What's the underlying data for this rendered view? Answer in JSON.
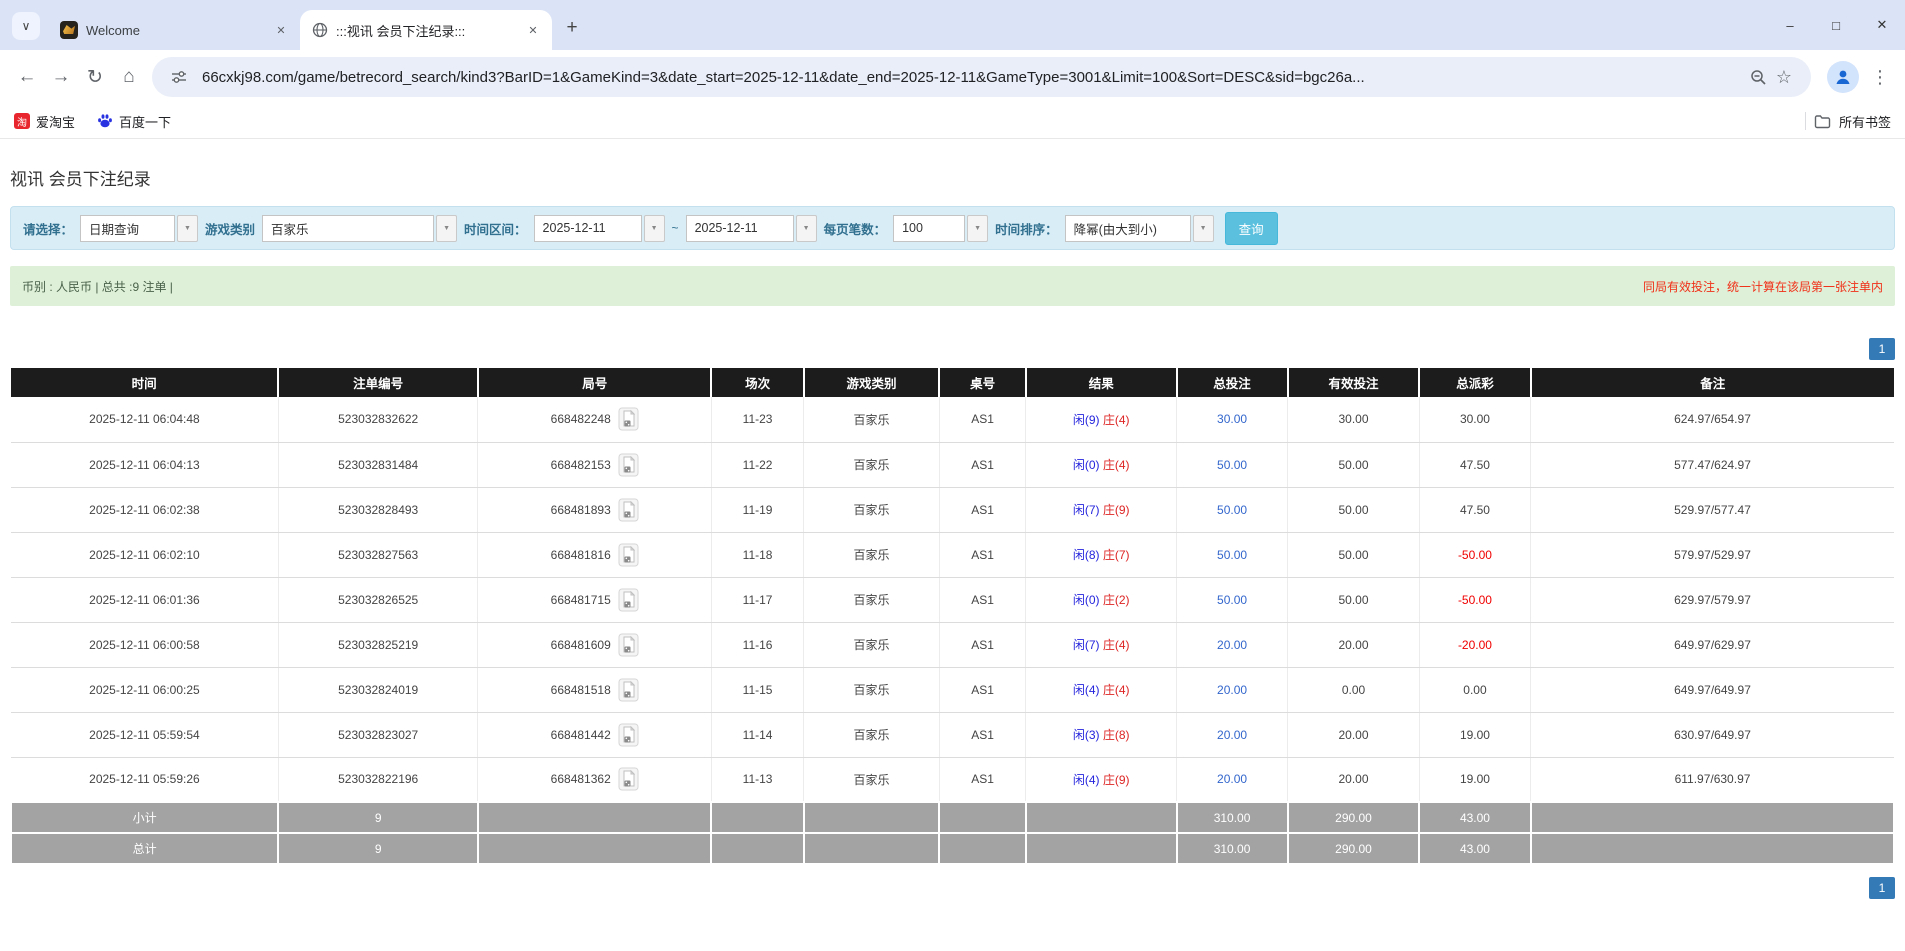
{
  "browser": {
    "tabs": [
      {
        "title": "Welcome"
      },
      {
        "title": ":::视讯 会员下注纪录:::"
      }
    ],
    "url": "66cxkj98.com/game/betrecord_search/kind3?BarID=1&GameKind=3&date_start=2025-12-11&date_end=2025-12-11&GameType=3001&Limit=100&Sort=DESC&sid=bgc26a...",
    "bookmarks": [
      "爱淘宝",
      "百度一下"
    ],
    "all_bookmarks_label": "所有书签"
  },
  "icons": {
    "tab_chevron": "∨",
    "tab_close": "✕",
    "new_tab": "+",
    "win_minimize": "–",
    "win_maximize": "□",
    "win_close": "✕",
    "nav_back": "←",
    "nav_forward": "→",
    "nav_refresh": "↻",
    "nav_home": "⌂",
    "star": "☆",
    "menu_dots": "⋮",
    "combo_arrow": "▼",
    "taobao_glyph": "淘"
  },
  "page": {
    "title": "视讯 会员下注纪录",
    "filters": {
      "select_label": "请选择：",
      "select_value": "日期查询",
      "game_type_label": "游戏类别",
      "game_type_value": "百家乐",
      "date_range_label": "时间区间：",
      "date_start": "2025-12-11",
      "tilde": "~",
      "date_end": "2025-12-11",
      "per_page_label": "每页笔数：",
      "per_page_value": "100",
      "sort_label": "时间排序：",
      "sort_value": "降幂(由大到小)",
      "search_button": "查询"
    },
    "summary": {
      "left": "币别 : 人民币 | 总共 :9 注单 |",
      "right_note": "同局有效投注，统一计算在该局第一张注单内"
    },
    "pagination": "1",
    "table": {
      "headers": [
        "时间",
        "注单编号",
        "局号",
        "场次",
        "游戏类别",
        "桌号",
        "结果",
        "总投注",
        "有效投注",
        "总派彩",
        "备注"
      ],
      "col_widths_pct": [
        14.2,
        10.6,
        12.4,
        4.9,
        7.2,
        4.6,
        8.0,
        5.9,
        7.0,
        5.9,
        19.3
      ],
      "rows": [
        {
          "time": "2025-12-11 06:04:48",
          "bet_id": "523032832622",
          "round": "668482248",
          "session": "11-23",
          "game": "百家乐",
          "table": "AS1",
          "player": "闲(9)",
          "banker": "庄(4)",
          "total_bet": "30.00",
          "valid_bet": "30.00",
          "payout": "30.00",
          "note": "624.97/654.97"
        },
        {
          "time": "2025-12-11 06:04:13",
          "bet_id": "523032831484",
          "round": "668482153",
          "session": "11-22",
          "game": "百家乐",
          "table": "AS1",
          "player": "闲(0)",
          "banker": "庄(4)",
          "total_bet": "50.00",
          "valid_bet": "50.00",
          "payout": "47.50",
          "note": "577.47/624.97"
        },
        {
          "time": "2025-12-11 06:02:38",
          "bet_id": "523032828493",
          "round": "668481893",
          "session": "11-19",
          "game": "百家乐",
          "table": "AS1",
          "player": "闲(7)",
          "banker": "庄(9)",
          "total_bet": "50.00",
          "valid_bet": "50.00",
          "payout": "47.50",
          "note": "529.97/577.47"
        },
        {
          "time": "2025-12-11 06:02:10",
          "bet_id": "523032827563",
          "round": "668481816",
          "session": "11-18",
          "game": "百家乐",
          "table": "AS1",
          "player": "闲(8)",
          "banker": "庄(7)",
          "total_bet": "50.00",
          "valid_bet": "50.00",
          "payout": "-50.00",
          "note": "579.97/529.97"
        },
        {
          "time": "2025-12-11 06:01:36",
          "bet_id": "523032826525",
          "round": "668481715",
          "session": "11-17",
          "game": "百家乐",
          "table": "AS1",
          "player": "闲(0)",
          "banker": "庄(2)",
          "total_bet": "50.00",
          "valid_bet": "50.00",
          "payout": "-50.00",
          "note": "629.97/579.97"
        },
        {
          "time": "2025-12-11 06:00:58",
          "bet_id": "523032825219",
          "round": "668481609",
          "session": "11-16",
          "game": "百家乐",
          "table": "AS1",
          "player": "闲(7)",
          "banker": "庄(4)",
          "total_bet": "20.00",
          "valid_bet": "20.00",
          "payout": "-20.00",
          "note": "649.97/629.97"
        },
        {
          "time": "2025-12-11 06:00:25",
          "bet_id": "523032824019",
          "round": "668481518",
          "session": "11-15",
          "game": "百家乐",
          "table": "AS1",
          "player": "闲(4)",
          "banker": "庄(4)",
          "total_bet": "20.00",
          "valid_bet": "0.00",
          "payout": "0.00",
          "note": "649.97/649.97"
        },
        {
          "time": "2025-12-11 05:59:54",
          "bet_id": "523032823027",
          "round": "668481442",
          "session": "11-14",
          "game": "百家乐",
          "table": "AS1",
          "player": "闲(3)",
          "banker": "庄(8)",
          "total_bet": "20.00",
          "valid_bet": "20.00",
          "payout": "19.00",
          "note": "630.97/649.97"
        },
        {
          "time": "2025-12-11 05:59:26",
          "bet_id": "523032822196",
          "round": "668481362",
          "session": "11-13",
          "game": "百家乐",
          "table": "AS1",
          "player": "闲(4)",
          "banker": "庄(9)",
          "total_bet": "20.00",
          "valid_bet": "20.00",
          "payout": "19.00",
          "note": "611.97/630.97"
        }
      ],
      "subtotal": {
        "label": "小计",
        "count": "9",
        "total_bet": "310.00",
        "valid_bet": "290.00",
        "payout": "43.00"
      },
      "total": {
        "label": "总计",
        "count": "9",
        "total_bet": "310.00",
        "valid_bet": "290.00",
        "payout": "43.00"
      }
    },
    "colors": {
      "accent_blue": "#337ab7",
      "link_blue": "#3366cc",
      "player_blue": "#2424dd",
      "banker_red": "#dd2424",
      "negative_red": "#f00000",
      "filter_bg": "#d9edf7",
      "summary_bg": "#dff0d8",
      "header_bg": "#1c1c1c",
      "footer_gray": "#a3a3a3"
    }
  }
}
